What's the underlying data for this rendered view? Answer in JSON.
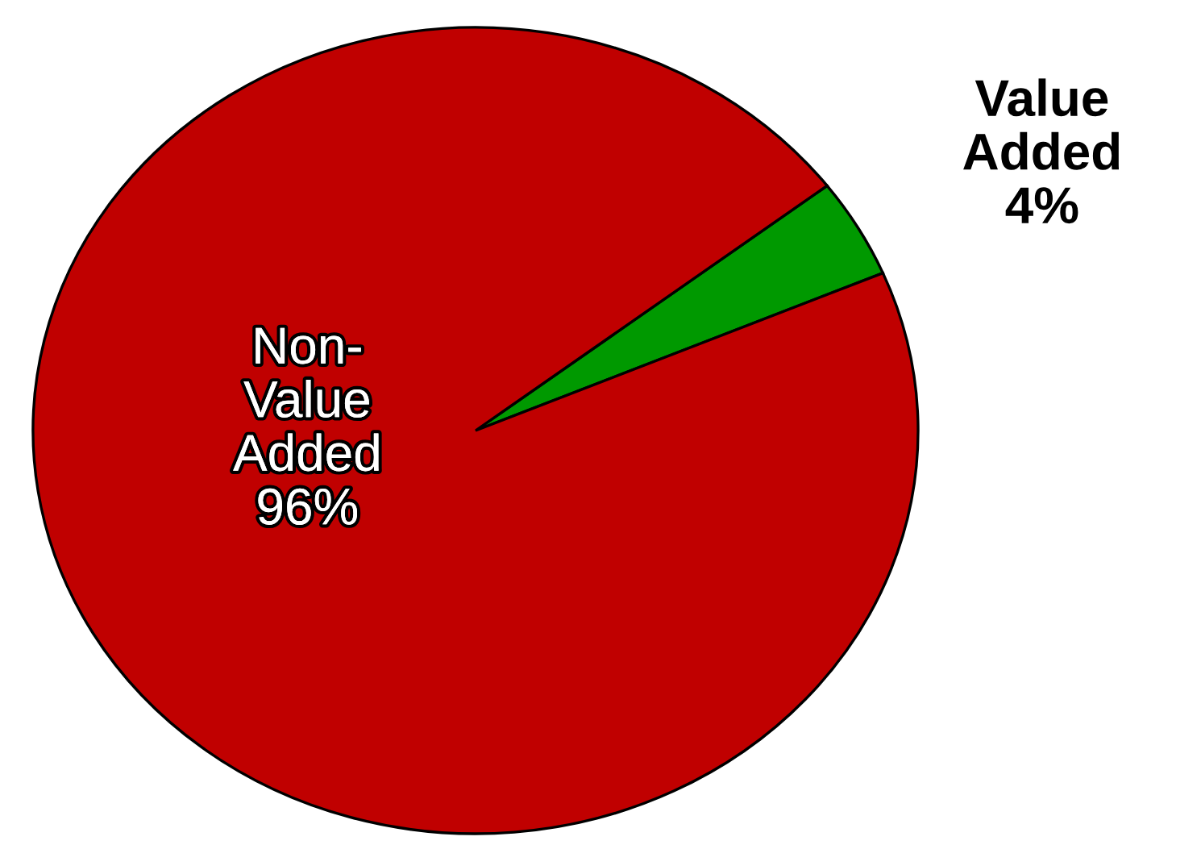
{
  "chart_data": {
    "type": "pie",
    "categories": [
      "Value Added",
      "Non-Value Added"
    ],
    "values": [
      4,
      96
    ],
    "value_labels": [
      "4%",
      "96%"
    ],
    "colors": [
      "#009900",
      "#c00000"
    ]
  }
}
